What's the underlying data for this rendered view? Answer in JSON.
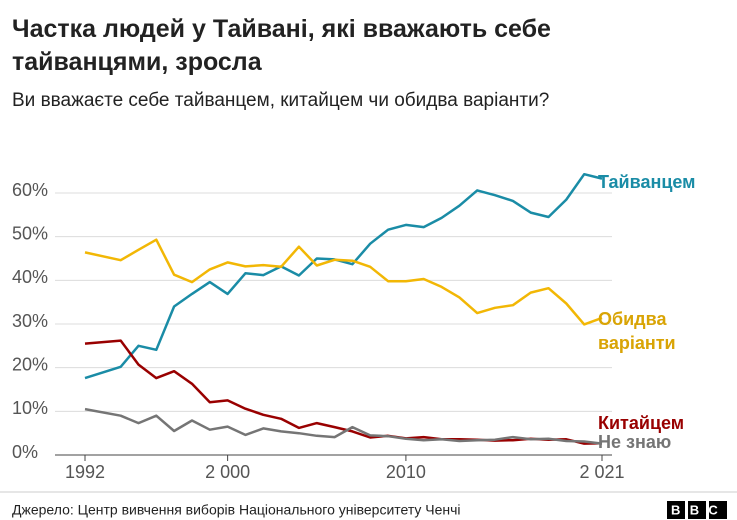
{
  "chart_data": {
    "type": "line",
    "title": "Частка людей у Тайвані, які вважають себе тайванцями, зросла",
    "subtitle": "Ви вважаєте себе тайванцем, китайцем чи обидва варіанти?",
    "x": [
      1992,
      1994,
      1995,
      1996,
      1997,
      1998,
      1999,
      2000,
      2001,
      2002,
      2003,
      2004,
      2005,
      2006,
      2007,
      2008,
      2009,
      2010,
      2011,
      2012,
      2013,
      2014,
      2015,
      2016,
      2017,
      2018,
      2019,
      2020,
      2021
    ],
    "series": [
      {
        "name": "Тайванцем",
        "color": "#1a8ca6",
        "values": [
          17.6,
          20.2,
          25.0,
          24.1,
          34.0,
          36.9,
          39.6,
          36.9,
          41.6,
          41.2,
          43.2,
          41.1,
          45.0,
          44.8,
          43.7,
          48.4,
          51.6,
          52.7,
          52.2,
          54.3,
          57.1,
          60.6,
          59.5,
          58.2,
          55.5,
          54.5,
          58.5,
          64.3,
          63.3
        ]
      },
      {
        "name": "Обидва варіанти",
        "color": "#f2b705",
        "values": [
          46.4,
          44.6,
          47.0,
          49.3,
          41.3,
          39.6,
          42.5,
          44.1,
          43.2,
          43.5,
          43.1,
          47.7,
          43.4,
          44.7,
          44.5,
          43.1,
          39.8,
          39.8,
          40.3,
          38.5,
          36.1,
          32.5,
          33.7,
          34.3,
          37.2,
          38.2,
          34.7,
          29.9,
          31.4
        ]
      },
      {
        "name": "Китайцем",
        "color": "#990000",
        "values": [
          25.5,
          26.2,
          20.7,
          17.6,
          19.2,
          16.3,
          12.1,
          12.5,
          10.6,
          9.2,
          8.3,
          6.2,
          7.3,
          6.4,
          5.4,
          4.0,
          4.4,
          3.8,
          4.1,
          3.6,
          3.6,
          3.5,
          3.3,
          3.4,
          3.7,
          3.5,
          3.6,
          2.6,
          2.7
        ]
      },
      {
        "name": "Не знаю",
        "color": "#757575",
        "values": [
          10.5,
          9.0,
          7.3,
          9.0,
          5.5,
          7.9,
          5.8,
          6.5,
          4.6,
          6.1,
          5.4,
          5.0,
          4.4,
          4.1,
          6.4,
          4.5,
          4.3,
          3.7,
          3.4,
          3.6,
          3.2,
          3.4,
          3.5,
          4.1,
          3.6,
          3.7,
          3.2,
          3.1,
          2.6
        ]
      }
    ],
    "xlim": [
      1992,
      2021
    ],
    "xticks": [
      1992,
      {
        "value": 2000,
        "label": "2 000"
      },
      2010,
      {
        "value": 2021,
        "label": "2 021"
      }
    ],
    "ylim": [
      0,
      60
    ],
    "yticks": [
      {
        "value": 0,
        "label": "0%"
      },
      {
        "value": 10,
        "label": "10%"
      },
      {
        "value": 20,
        "label": "20%"
      },
      {
        "value": 30,
        "label": "30%"
      },
      {
        "value": 40,
        "label": "40%"
      },
      {
        "value": 50,
        "label": "50%"
      },
      {
        "value": 60,
        "label": "60%"
      }
    ],
    "grid": true,
    "source": "Джерело: Центр вивчення виборів Національного університету Ченчі",
    "logo": "BBC"
  }
}
